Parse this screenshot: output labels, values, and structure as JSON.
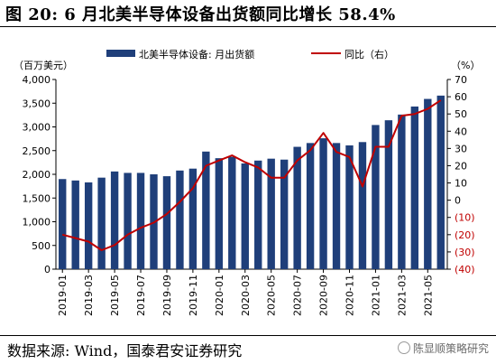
{
  "header": {
    "title": "图 20:  6 月北美半导体设备出货额同比增长 58.4%"
  },
  "footer": {
    "source": "数据来源:  Wind，国泰君安证券研究",
    "watermark": "陈显顺策略研究"
  },
  "chart_data": {
    "type": "bar+line",
    "left_unit": "（百万美元）",
    "right_unit": "（%）",
    "legend": {
      "bar": "北美半导体设备: 月出货额",
      "line": "同比（右）"
    },
    "colors": {
      "bar": "#1f3f7a",
      "line": "#c00000"
    },
    "left_axis": {
      "min": 0,
      "max": 4000,
      "ticks": [
        "0",
        "500",
        "1,000",
        "1,500",
        "2,000",
        "2,500",
        "3,000",
        "3,500",
        "4,000"
      ]
    },
    "right_axis": {
      "min": -40,
      "max": 70,
      "ticks": [
        "(40)",
        "(30)",
        "(20)",
        "(10)",
        "0",
        "10",
        "20",
        "30",
        "40",
        "50",
        "60",
        "70"
      ]
    },
    "x_tick_labels": [
      "2019-01",
      "2019-03",
      "2019-05",
      "2019-07",
      "2019-09",
      "2019-11",
      "2020-01",
      "2020-03",
      "2020-05",
      "2020-07",
      "2020-09",
      "2020-11",
      "2021-01",
      "2021-03",
      "2021-05"
    ],
    "x": [
      "2019-01",
      "2019-02",
      "2019-03",
      "2019-04",
      "2019-05",
      "2019-06",
      "2019-07",
      "2019-08",
      "2019-09",
      "2019-10",
      "2019-11",
      "2019-12",
      "2020-01",
      "2020-02",
      "2020-03",
      "2020-04",
      "2020-05",
      "2020-06",
      "2020-07",
      "2020-08",
      "2020-09",
      "2020-10",
      "2020-11",
      "2020-12",
      "2021-01",
      "2021-02",
      "2021-03",
      "2021-04",
      "2021-05",
      "2021-06"
    ],
    "series": [
      {
        "name": "北美半导体设备: 月出货额",
        "type": "bar",
        "axis": "left",
        "values": [
          1900,
          1870,
          1830,
          1930,
          2060,
          2030,
          2030,
          2000,
          1960,
          2080,
          2120,
          2480,
          2340,
          2370,
          2230,
          2290,
          2330,
          2310,
          2580,
          2660,
          2760,
          2660,
          2610,
          2680,
          3040,
          3140,
          3260,
          3430,
          3590,
          3660
        ]
      },
      {
        "name": "同比（右）",
        "type": "line",
        "axis": "right",
        "values": [
          -20,
          -22,
          -24,
          -29,
          -26,
          -20,
          -16,
          -13,
          -8,
          -1,
          7,
          20,
          23,
          26,
          22,
          19,
          13,
          13,
          23,
          29,
          39,
          28,
          25,
          8,
          31,
          31,
          49,
          50,
          53,
          58
        ]
      }
    ]
  }
}
